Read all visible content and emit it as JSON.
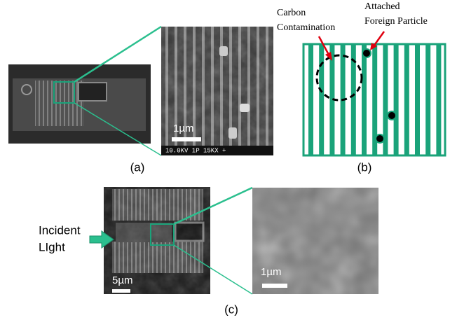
{
  "panel_a": {
    "label": "(a)",
    "scale_bar": "1µm",
    "sem_info": "10.0KV   1P   15KX +"
  },
  "panel_b": {
    "label": "(b)",
    "carbon": [
      "Carbon",
      "Contamination"
    ],
    "particle": [
      "Attached",
      "Foreign Particle"
    ]
  },
  "panel_c": {
    "label": "(c)",
    "incident": [
      "Incident",
      "LIght"
    ],
    "scale_bar_left": "5µm",
    "scale_bar_right": "1µm"
  }
}
